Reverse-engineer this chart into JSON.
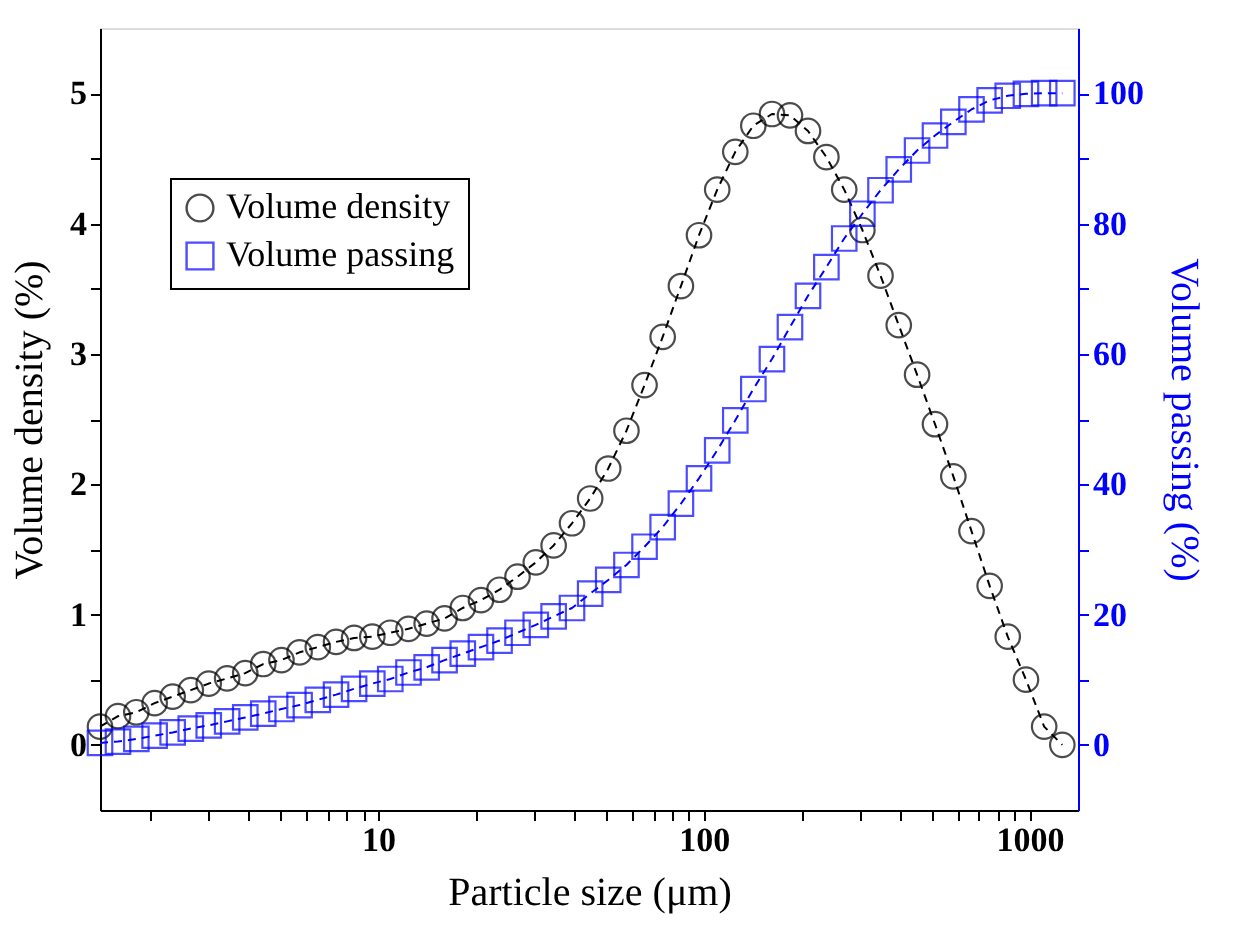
{
  "chart_data": {
    "type": "line",
    "xlabel": "Particle size (μm)",
    "ylabel": "Volume density (%)",
    "y2label": "Volume passing (%)",
    "x": [
      1.4,
      1.59,
      1.81,
      2.06,
      2.34,
      2.66,
      3.02,
      3.44,
      3.91,
      4.44,
      5.05,
      5.74,
      6.53,
      7.43,
      8.44,
      9.6,
      10.9,
      12.4,
      14.1,
      16.0,
      18.2,
      20.7,
      23.6,
      26.8,
      30.5,
      34.6,
      39.4,
      44.8,
      50.9,
      57.9,
      65.8,
      74.8,
      85.1,
      96.7,
      110,
      125,
      142,
      162,
      184,
      209,
      238,
      270,
      307,
      349,
      397,
      452,
      513,
      584,
      664,
      755,
      858,
      976,
      1110,
      1262
    ],
    "series": [
      {
        "name": "Volume density",
        "color": "#000000",
        "marker": "circle",
        "values": [
          0.14,
          0.22,
          0.25,
          0.32,
          0.37,
          0.42,
          0.47,
          0.51,
          0.55,
          0.62,
          0.65,
          0.71,
          0.75,
          0.79,
          0.82,
          0.83,
          0.86,
          0.89,
          0.93,
          0.97,
          1.05,
          1.11,
          1.19,
          1.29,
          1.4,
          1.53,
          1.7,
          1.89,
          2.12,
          2.41,
          2.76,
          3.13,
          3.52,
          3.91,
          4.26,
          4.55,
          4.75,
          4.84,
          4.83,
          4.71,
          4.51,
          4.26,
          3.95,
          3.6,
          3.22,
          2.84,
          2.46,
          2.06,
          1.64,
          1.22,
          0.83,
          0.5,
          0.14,
          0.0
        ]
      },
      {
        "name": "Volume passing",
        "color": "#0000ff",
        "marker": "square",
        "axis": "y2",
        "values": [
          0.3,
          0.5,
          0.9,
          1.4,
          1.9,
          2.5,
          3.0,
          3.6,
          4.2,
          4.8,
          5.5,
          6.1,
          6.9,
          7.7,
          8.6,
          9.4,
          10.1,
          11.1,
          11.9,
          13.0,
          14.0,
          15.0,
          16.0,
          17.2,
          18.4,
          19.7,
          21.0,
          23.2,
          25.3,
          27.6,
          30.4,
          33.4,
          37.0,
          40.9,
          45.2,
          49.8,
          54.6,
          59.2,
          64.1,
          68.9,
          73.3,
          77.7,
          81.5,
          85.1,
          88.3,
          91.2,
          93.5,
          95.6,
          97.5,
          98.9,
          99.6,
          99.9,
          100,
          100
        ]
      }
    ],
    "log": "x",
    "xlim": [
      1.4,
      1410
    ],
    "xticks": [
      {
        "value": 2,
        "label": null
      },
      {
        "value": 3,
        "label": null
      },
      {
        "value": 4,
        "label": null
      },
      {
        "value": 5,
        "label": null
      },
      {
        "value": 6,
        "label": null
      },
      {
        "value": 7,
        "label": null
      },
      {
        "value": 8,
        "label": null
      },
      {
        "value": 9,
        "label": null
      },
      10,
      {
        "value": 20,
        "label": null
      },
      {
        "value": 30,
        "label": null
      },
      {
        "value": 40,
        "label": null
      },
      {
        "value": 50,
        "label": null
      },
      {
        "value": 60,
        "label": null
      },
      {
        "value": 70,
        "label": null
      },
      {
        "value": 80,
        "label": null
      },
      {
        "value": 90,
        "label": null
      },
      100,
      {
        "value": 200,
        "label": null
      },
      {
        "value": 300,
        "label": null
      },
      {
        "value": 400,
        "label": null
      },
      {
        "value": 500,
        "label": null
      },
      {
        "value": 600,
        "label": null
      },
      {
        "value": 700,
        "label": null
      },
      {
        "value": 800,
        "label": null
      },
      {
        "value": 900,
        "label": null
      },
      1000
    ],
    "ylim": [
      -0.5,
      5.5
    ],
    "yticks": [
      0,
      {
        "value": 0.5,
        "label": null
      },
      1,
      {
        "value": 1.5,
        "label": null
      },
      2,
      {
        "value": 2.5,
        "label": null
      },
      3,
      {
        "value": 3.5,
        "label": null
      },
      4,
      {
        "value": 4.5,
        "label": null
      },
      5
    ],
    "y2lim": [
      -10,
      110
    ],
    "y2ticks": [
      0,
      {
        "value": 10,
        "label": null
      },
      20,
      {
        "value": 30,
        "label": null
      },
      40,
      {
        "value": 50,
        "label": null
      },
      60,
      {
        "value": 70,
        "label": null
      },
      80,
      {
        "value": 90,
        "label": null
      },
      100
    ],
    "grid": false,
    "legend": "top left",
    "line_style": "dashed"
  }
}
